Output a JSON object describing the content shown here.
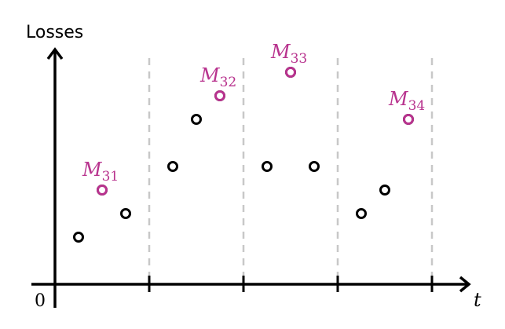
{
  "chart_data": {
    "type": "scatter",
    "ylabel": "Losses",
    "xlabel": "t",
    "origin_label": "0",
    "segment_boundaries": [
      4,
      8,
      12,
      16
    ],
    "points": [
      {
        "x": 1,
        "y": 2
      },
      {
        "x": 2,
        "y": 4
      },
      {
        "x": 3,
        "y": 3
      },
      {
        "x": 5,
        "y": 5
      },
      {
        "x": 6,
        "y": 7
      },
      {
        "x": 7,
        "y": 8
      },
      {
        "x": 9,
        "y": 5
      },
      {
        "x": 10,
        "y": 9
      },
      {
        "x": 11,
        "y": 5
      },
      {
        "x": 13,
        "y": 3
      },
      {
        "x": 14,
        "y": 4
      },
      {
        "x": 15,
        "y": 7
      }
    ],
    "maxima": [
      {
        "label": "M",
        "sub": "31",
        "x": 2,
        "y": 4
      },
      {
        "label": "M",
        "sub": "32",
        "x": 7,
        "y": 8
      },
      {
        "label": "M",
        "sub": "33",
        "x": 10,
        "y": 9
      },
      {
        "label": "M",
        "sub": "34",
        "x": 15,
        "y": 7
      }
    ],
    "colors": {
      "points": "#000000",
      "maxima": "#b8338e",
      "dividers": "#c8c8c8"
    },
    "grid": false
  }
}
